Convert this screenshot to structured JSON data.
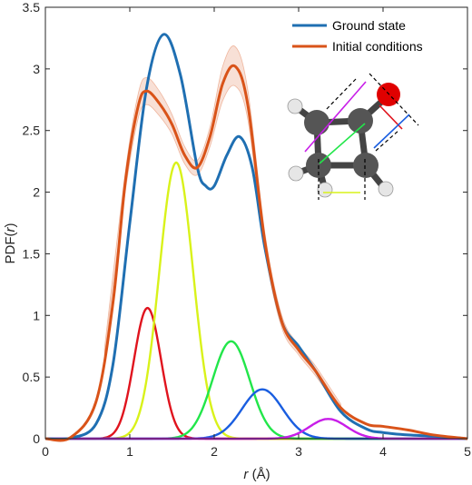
{
  "chart_data": {
    "type": "line",
    "xlabel_italic": "r",
    "xlabel_unit": " (Å)",
    "ylabel_prefix": "PDF(",
    "ylabel_italic": "r",
    "ylabel_suffix": ")",
    "xlim": [
      0,
      5
    ],
    "ylim": [
      0,
      3.5
    ],
    "xticks": [
      "0",
      "1",
      "2",
      "3",
      "4",
      "5"
    ],
    "yticks": [
      "0",
      "0.5",
      "1",
      "1.5",
      "2",
      "2.5",
      "3",
      "3.5"
    ],
    "grid": false,
    "legend_position": "top-right",
    "series": [
      {
        "name": "Ground state",
        "color": "#1f6fb2",
        "x": [
          0,
          0.3,
          0.6,
          0.8,
          1.0,
          1.2,
          1.4,
          1.6,
          1.8,
          1.9,
          2.0,
          2.15,
          2.3,
          2.45,
          2.6,
          2.8,
          3.0,
          3.2,
          3.5,
          3.8,
          4.0,
          4.3,
          4.6,
          5.0
        ],
        "y": [
          0,
          0.005,
          0.12,
          0.6,
          1.75,
          2.85,
          3.28,
          2.95,
          2.2,
          2.05,
          2.05,
          2.3,
          2.45,
          2.2,
          1.55,
          0.95,
          0.75,
          0.55,
          0.22,
          0.08,
          0.05,
          0.03,
          0.02,
          0.0
        ]
      },
      {
        "name": "Initial conditions",
        "color": "#d95319",
        "x": [
          0,
          0.3,
          0.6,
          0.8,
          0.95,
          1.1,
          1.2,
          1.35,
          1.5,
          1.65,
          1.8,
          1.95,
          2.1,
          2.25,
          2.4,
          2.6,
          2.8,
          3.0,
          3.2,
          3.5,
          3.8,
          4.0,
          4.3,
          4.6,
          5.0
        ],
        "y": [
          0,
          0.01,
          0.3,
          1.1,
          2.1,
          2.7,
          2.82,
          2.72,
          2.55,
          2.3,
          2.2,
          2.45,
          2.88,
          3.02,
          2.7,
          1.6,
          0.95,
          0.72,
          0.55,
          0.25,
          0.12,
          0.1,
          0.07,
          0.03,
          0.0
        ]
      }
    ],
    "band": {
      "color": "#d95319",
      "x": [
        0.7,
        0.95,
        1.1,
        1.2,
        1.35,
        1.5,
        1.65,
        1.8,
        1.95,
        2.1,
        2.25,
        2.4,
        2.6,
        2.8,
        3.0,
        3.2,
        3.5
      ],
      "half_width": [
        0.03,
        0.08,
        0.1,
        0.11,
        0.1,
        0.08,
        0.07,
        0.06,
        0.08,
        0.14,
        0.16,
        0.12,
        0.07,
        0.05,
        0.04,
        0.04,
        0.03
      ]
    },
    "components": [
      {
        "color": "#e0141e",
        "center": 1.21,
        "amplitude": 1.06,
        "sigma": 0.16
      },
      {
        "color": "#d9f21a",
        "center": 1.55,
        "amplitude": 2.24,
        "sigma": 0.2
      },
      {
        "color": "#22e64a",
        "center": 2.2,
        "amplitude": 0.79,
        "sigma": 0.22
      },
      {
        "color": "#1a5ee0",
        "center": 2.57,
        "amplitude": 0.4,
        "sigma": 0.24
      },
      {
        "color": "#c81ee8",
        "center": 3.35,
        "amplitude": 0.16,
        "sigma": 0.22
      }
    ]
  },
  "inset": {
    "icon": "cyclobutanone-molecule-icon",
    "atom_carbon_color": "#555555",
    "atom_oxygen_color": "#e00000",
    "atom_hydrogen_color": "#e6e6e6"
  }
}
